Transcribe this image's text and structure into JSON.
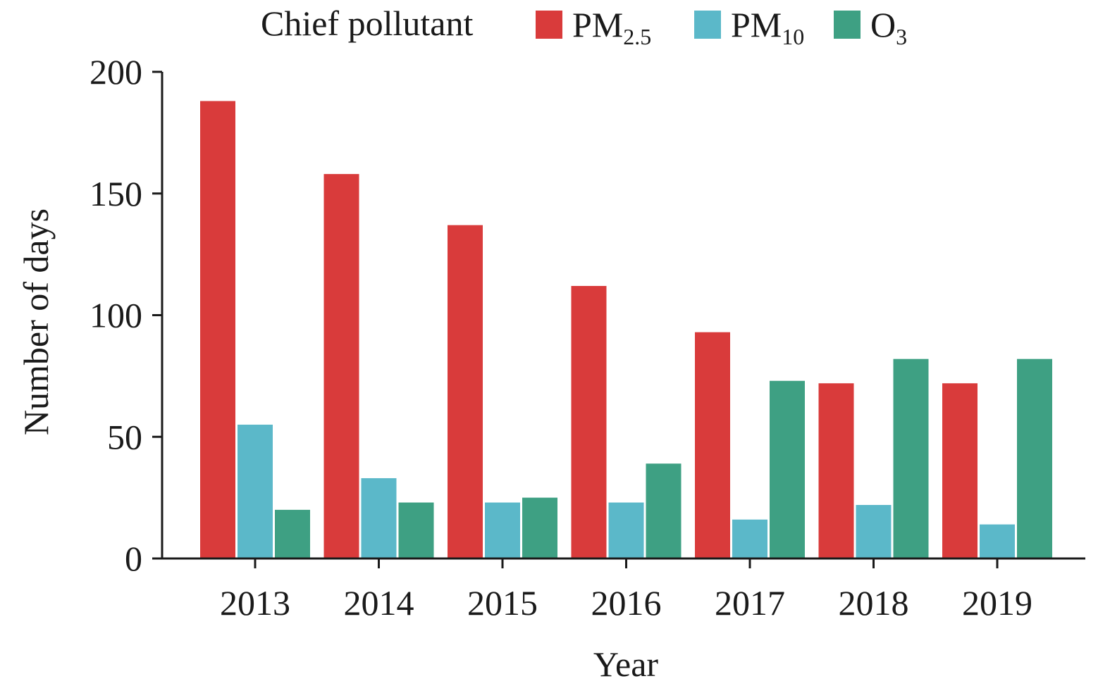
{
  "chart_data": {
    "type": "bar",
    "title": "",
    "xlabel": "Year",
    "ylabel": "Number of days",
    "ylim": [
      0,
      200
    ],
    "yticks": [
      0,
      50,
      100,
      150,
      200
    ],
    "grid": false,
    "legend": {
      "title": "Chief pollutant",
      "placement": "top"
    },
    "categories": [
      "2013",
      "2014",
      "2015",
      "2016",
      "2017",
      "2018",
      "2019"
    ],
    "series": [
      {
        "name": "PM2.5",
        "label_main": "PM",
        "label_sub": "2.5",
        "color": "#d93b3b",
        "values": [
          188,
          158,
          137,
          112,
          93,
          72,
          72
        ]
      },
      {
        "name": "PM10",
        "label_main": "PM",
        "label_sub": "10",
        "color": "#5bb8c9",
        "values": [
          55,
          33,
          23,
          23,
          16,
          22,
          14
        ]
      },
      {
        "name": "O3",
        "label_main": "O",
        "label_sub": "3",
        "color": "#3ea083",
        "values": [
          20,
          23,
          25,
          39,
          73,
          82,
          82
        ]
      }
    ]
  }
}
